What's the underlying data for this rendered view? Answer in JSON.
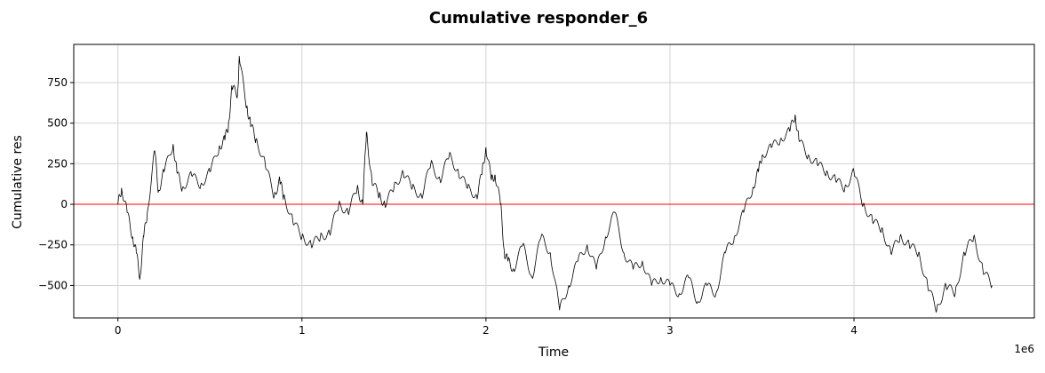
{
  "chart_data": {
    "type": "line",
    "title": "Cumulative responder_6",
    "xlabel": "Time",
    "ylabel": "Cumulative res",
    "x_offset_label": "1e6",
    "xlim": [
      -0.24,
      4.98
    ],
    "ylim": [
      -700,
      985
    ],
    "xticks": [
      0,
      1,
      2,
      3,
      4
    ],
    "yticks": [
      -500,
      -250,
      0,
      250,
      500,
      750
    ],
    "grid": true,
    "x_unit_multiplier": 1000000,
    "line_color": "#000000",
    "reference_line": {
      "y": 0,
      "color": "#ff0000"
    },
    "series": [
      {
        "x": [
          0,
          0.02,
          0.05,
          0.08,
          0.1,
          0.12,
          0.14,
          0.16,
          0.2,
          0.22,
          0.25,
          0.3,
          0.32,
          0.35,
          0.4,
          0.45,
          0.5,
          0.55,
          0.58,
          0.6,
          0.62,
          0.65,
          0.66,
          0.7,
          0.72,
          0.75,
          0.8,
          0.85,
          0.88,
          0.9,
          0.95,
          1.0,
          1.05,
          1.1,
          1.15,
          1.2,
          1.25,
          1.3,
          1.33,
          1.35,
          1.38,
          1.42,
          1.45,
          1.5,
          1.55,
          1.6,
          1.65,
          1.7,
          1.75,
          1.8,
          1.85,
          1.9,
          1.95,
          1.98,
          2.0,
          2.03,
          2.05,
          2.08,
          2.1,
          2.12,
          2.15,
          2.2,
          2.25,
          2.3,
          2.35,
          2.4,
          2.45,
          2.5,
          2.55,
          2.6,
          2.65,
          2.7,
          2.75,
          2.8,
          2.85,
          2.9,
          2.95,
          3.0,
          3.05,
          3.1,
          3.15,
          3.2,
          3.25,
          3.3,
          3.35,
          3.4,
          3.45,
          3.48,
          3.5,
          3.55,
          3.6,
          3.65,
          3.68,
          3.7,
          3.75,
          3.8,
          3.85,
          3.9,
          3.95,
          4.0,
          4.05,
          4.1,
          4.15,
          4.2,
          4.25,
          4.3,
          4.35,
          4.4,
          4.45,
          4.5,
          4.55,
          4.6,
          4.65,
          4.7,
          4.75
        ],
        "y": [
          0,
          100,
          -50,
          -200,
          -300,
          -450,
          -200,
          -50,
          330,
          80,
          200,
          370,
          200,
          100,
          180,
          120,
          200,
          350,
          400,
          480,
          720,
          680,
          900,
          600,
          500,
          400,
          250,
          50,
          150,
          50,
          -100,
          -200,
          -250,
          -200,
          -180,
          0,
          -50,
          100,
          0,
          440,
          150,
          50,
          0,
          100,
          200,
          100,
          50,
          250,
          150,
          300,
          200,
          100,
          50,
          200,
          350,
          150,
          180,
          0,
          -300,
          -350,
          -400,
          -250,
          -450,
          -200,
          -300,
          -650,
          -500,
          -350,
          -250,
          -400,
          -200,
          -50,
          -300,
          -400,
          -350,
          -500,
          -450,
          -500,
          -550,
          -450,
          -600,
          -500,
          -550,
          -300,
          -200,
          -50,
          100,
          200,
          300,
          350,
          400,
          450,
          550,
          400,
          300,
          250,
          200,
          150,
          100,
          200,
          0,
          -100,
          -150,
          -300,
          -200,
          -250,
          -300,
          -500,
          -650,
          -500,
          -550,
          -300,
          -200,
          -400,
          -500
        ]
      }
    ]
  }
}
